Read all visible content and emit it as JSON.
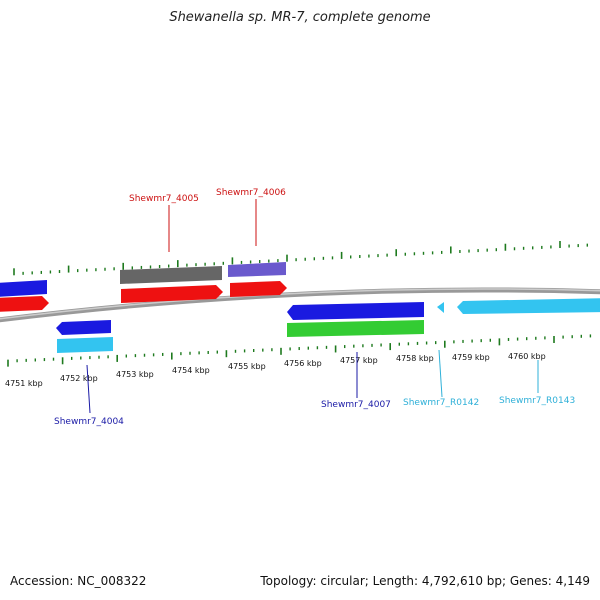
{
  "title": "Shewanella sp. MR-7, complete genome",
  "footer": {
    "accession": "Accession: NC_008322",
    "summary": "Topology: circular; Length: 4,792,610 bp; Genes: 4,149"
  },
  "ticks": [
    {
      "label": "4751 kbp"
    },
    {
      "label": "4752 kbp"
    },
    {
      "label": "4753 kbp"
    },
    {
      "label": "4754 kbp"
    },
    {
      "label": "4755 kbp"
    },
    {
      "label": "4756 kbp"
    },
    {
      "label": "4757 kbp"
    },
    {
      "label": "4758 kbp"
    },
    {
      "label": "4759 kbp"
    },
    {
      "label": "4760 kbp"
    }
  ],
  "genes": [
    {
      "label": "Shewmr7_4004",
      "color": "#1a1aa6"
    },
    {
      "label": "Shewmr7_4005",
      "color": "#cc1111"
    },
    {
      "label": "Shewmr7_4006",
      "color": "#cc1111"
    },
    {
      "label": "Shewmr7_4007",
      "color": "#1a1aa6"
    },
    {
      "label": "Shewmr7_R0142",
      "color": "#2fb0d8"
    },
    {
      "label": "Shewmr7_R0143",
      "color": "#2fb0d8"
    }
  ],
  "colors": {
    "backbone": "#888888",
    "tick": "#1e7a1e",
    "cds_forward": "#ee1111",
    "cds_reverse": "#1a1ae0",
    "gene_gray": "#666666",
    "gene_purple": "#6a5acd",
    "gene_cyan": "#33c4f0",
    "gene_green": "#33cc33"
  }
}
